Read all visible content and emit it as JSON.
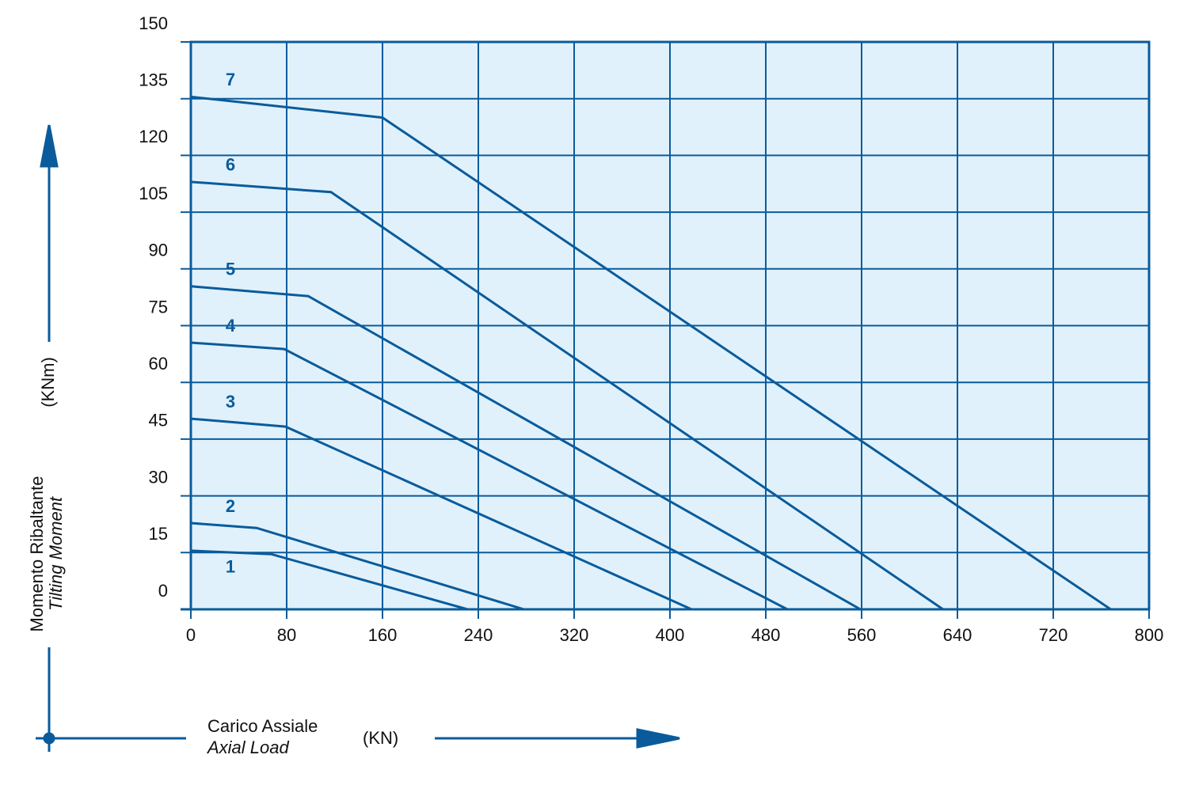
{
  "chart_data": {
    "type": "line",
    "y_label": [
      "Momento Ribaltante",
      "Tilting Moment"
    ],
    "y_unit": "(KNm)",
    "x_label": [
      "Carico Assiale",
      "Axial Load"
    ],
    "x_unit": "(KN)",
    "color": "#0a5b9b",
    "grid": true,
    "xlim": [
      0,
      800
    ],
    "xticks": [
      0,
      80,
      160,
      240,
      320,
      400,
      480,
      560,
      640,
      720,
      800
    ],
    "ylim": [
      0,
      150
    ],
    "yticks": [
      0,
      15,
      30,
      45,
      60,
      75,
      90,
      105,
      120,
      135,
      150
    ],
    "series": [
      {
        "name": "1",
        "color": "#0a5b9b",
        "x": [
          0,
          67,
          231
        ],
        "values": [
          15.5,
          14.6,
          0
        ]
      },
      {
        "name": "2",
        "color": "#0a5b9b",
        "x": [
          0,
          55,
          278
        ],
        "values": [
          22.8,
          21.5,
          0
        ]
      },
      {
        "name": "3",
        "color": "#0a5b9b",
        "x": [
          0,
          79,
          418
        ],
        "values": [
          50.4,
          48.3,
          0
        ]
      },
      {
        "name": "4",
        "color": "#0a5b9b",
        "x": [
          0,
          78,
          498
        ],
        "values": [
          70.5,
          68.8,
          0
        ]
      },
      {
        "name": "5",
        "color": "#0a5b9b",
        "x": [
          0,
          98,
          559
        ],
        "values": [
          85.4,
          82.8,
          0
        ]
      },
      {
        "name": "6",
        "color": "#0a5b9b",
        "x": [
          0,
          117,
          628
        ],
        "values": [
          113,
          110.3,
          0
        ]
      },
      {
        "name": "7",
        "color": "#0a5b9b",
        "x": [
          0,
          160,
          768
        ],
        "values": [
          135.5,
          130,
          0
        ]
      }
    ]
  }
}
